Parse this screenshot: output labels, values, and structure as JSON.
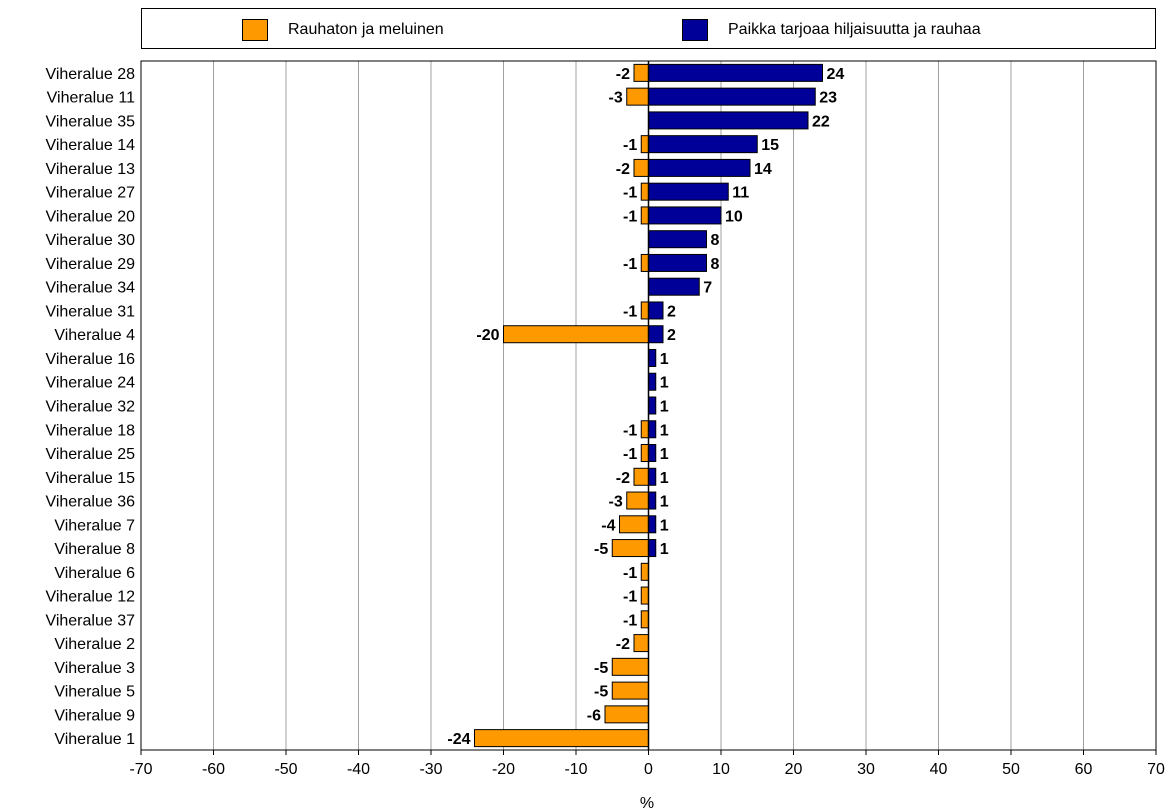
{
  "chart_data": {
    "type": "bar",
    "orientation": "horizontal",
    "categories": [
      "Viheralue 28",
      "Viheralue 11",
      "Viheralue 35",
      "Viheralue 14",
      "Viheralue 13",
      "Viheralue 27",
      "Viheralue 20",
      "Viheralue 30",
      "Viheralue 29",
      "Viheralue 34",
      "Viheralue 31",
      "Viheralue 4",
      "Viheralue 16",
      "Viheralue 24",
      "Viheralue 32",
      "Viheralue 18",
      "Viheralue 25",
      "Viheralue 15",
      "Viheralue 36",
      "Viheralue 7",
      "Viheralue 8",
      "Viheralue 6",
      "Viheralue 12",
      "Viheralue 37",
      "Viheralue 2",
      "Viheralue 3",
      "Viheralue 5",
      "Viheralue 9",
      "Viheralue 1"
    ],
    "series": [
      {
        "name": "Rauhaton ja meluinen",
        "color": "#FF9900",
        "values": [
          -2,
          -3,
          null,
          -1,
          -2,
          -1,
          -1,
          null,
          -1,
          null,
          -1,
          -20,
          null,
          null,
          null,
          -1,
          -1,
          -2,
          -3,
          -4,
          -5,
          -1,
          -1,
          -1,
          -2,
          -5,
          -5,
          -6,
          -24
        ]
      },
      {
        "name": "Paikka tarjoaa hiljaisuutta ja rauhaa",
        "color": "#000099",
        "values": [
          24,
          23,
          22,
          15,
          14,
          11,
          10,
          8,
          8,
          7,
          2,
          2,
          1,
          1,
          1,
          1,
          1,
          1,
          1,
          1,
          1,
          null,
          null,
          null,
          null,
          null,
          null,
          null,
          null
        ]
      }
    ],
    "xlabel": "%",
    "xlim": [
      -70,
      70
    ],
    "xticks": [
      -70,
      -60,
      -50,
      -40,
      -30,
      -20,
      -10,
      0,
      10,
      20,
      30,
      40,
      50,
      60,
      70
    ],
    "grid": "vertical",
    "legend": "top"
  }
}
